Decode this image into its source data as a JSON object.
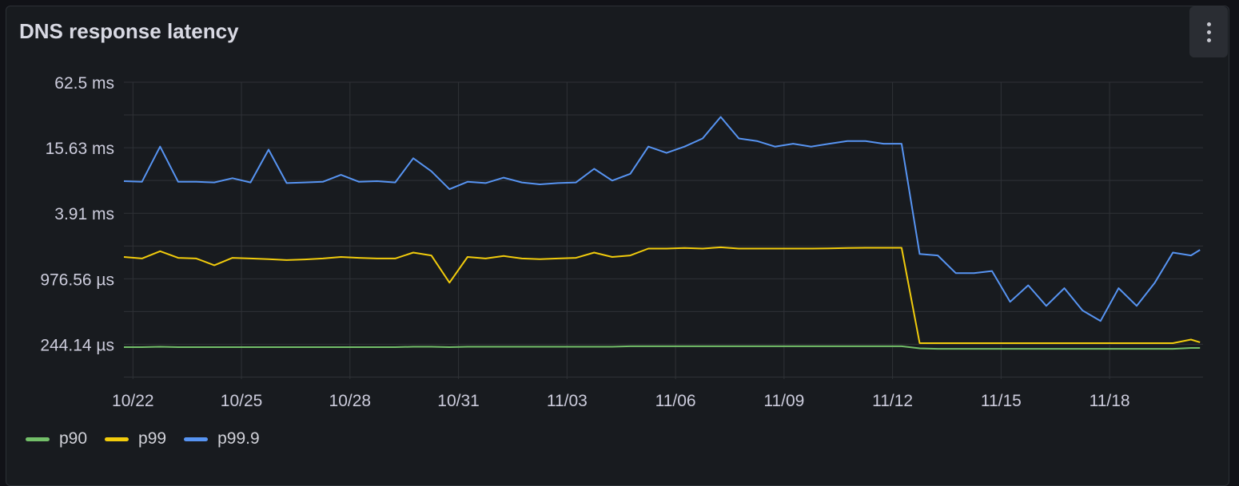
{
  "panel": {
    "title": "DNS response latency",
    "menu_icon": "kebab-vertical-icon"
  },
  "colors": {
    "background": "#181b1f",
    "grid": "#2f3237",
    "text": "#ccccdc",
    "p90": "#73BF69",
    "p99": "#F2CC0C",
    "p99.9": "#5794F2"
  },
  "chart_data": {
    "type": "line",
    "title": "DNS response latency",
    "yscale": "log2",
    "yunit": "ms",
    "ylim": [
      0.117,
      62.5
    ],
    "xlim": [
      "10/21 18:00",
      "11/20 14:00"
    ],
    "grid": true,
    "legend": "bottom-left",
    "yticks": [
      {
        "value": 62.5,
        "label": "62.5 ms"
      },
      {
        "value": 15.625,
        "label": "15.63 ms"
      },
      {
        "value": 3.90625,
        "label": "3.91 ms"
      },
      {
        "value": 0.9765625,
        "label": "976.56 µs"
      },
      {
        "value": 0.244140625,
        "label": "244.14 µs"
      }
    ],
    "xticks": [
      "10/22",
      "10/25",
      "10/28",
      "10/31",
      "11/03",
      "11/06",
      "11/09",
      "11/12",
      "11/15",
      "11/18"
    ],
    "x": [
      "10/21 18:00",
      "10/22 06:00",
      "10/22 18:00",
      "10/23 06:00",
      "10/23 18:00",
      "10/24 06:00",
      "10/24 18:00",
      "10/25 06:00",
      "10/25 18:00",
      "10/26 06:00",
      "10/26 18:00",
      "10/27 06:00",
      "10/27 18:00",
      "10/28 06:00",
      "10/28 18:00",
      "10/29 06:00",
      "10/29 18:00",
      "10/30 06:00",
      "10/30 18:00",
      "10/31 06:00",
      "10/31 18:00",
      "11/01 06:00",
      "11/01 18:00",
      "11/02 06:00",
      "11/02 18:00",
      "11/03 06:00",
      "11/03 18:00",
      "11/04 06:00",
      "11/04 18:00",
      "11/05 06:00",
      "11/05 18:00",
      "11/06 06:00",
      "11/06 18:00",
      "11/07 06:00",
      "11/07 18:00",
      "11/08 06:00",
      "11/08 18:00",
      "11/09 06:00",
      "11/09 18:00",
      "11/10 06:00",
      "11/10 18:00",
      "11/11 06:00",
      "11/11 18:00",
      "11/12 06:00",
      "11/12 18:00",
      "11/13 06:00",
      "11/13 18:00",
      "11/14 06:00",
      "11/14 18:00",
      "11/15 06:00",
      "11/15 18:00",
      "11/16 06:00",
      "11/16 18:00",
      "11/17 06:00",
      "11/17 18:00",
      "11/18 06:00",
      "11/18 18:00",
      "11/19 06:00",
      "11/19 18:00",
      "11/20 06:00",
      "11/20 12:00"
    ],
    "series": [
      {
        "name": "p90",
        "values": [
          0.23,
          0.23,
          0.232,
          0.23,
          0.23,
          0.23,
          0.23,
          0.23,
          0.23,
          0.23,
          0.23,
          0.23,
          0.23,
          0.23,
          0.23,
          0.23,
          0.232,
          0.232,
          0.23,
          0.232,
          0.232,
          0.232,
          0.232,
          0.232,
          0.232,
          0.232,
          0.232,
          0.232,
          0.234,
          0.234,
          0.234,
          0.234,
          0.234,
          0.234,
          0.234,
          0.234,
          0.234,
          0.234,
          0.234,
          0.234,
          0.234,
          0.234,
          0.234,
          0.234,
          0.224,
          0.222,
          0.222,
          0.222,
          0.222,
          0.222,
          0.222,
          0.222,
          0.222,
          0.222,
          0.222,
          0.222,
          0.222,
          0.222,
          0.222,
          0.226,
          0.226
        ]
      },
      {
        "name": "p99",
        "values": [
          1.55,
          1.5,
          1.75,
          1.52,
          1.5,
          1.3,
          1.52,
          1.5,
          1.48,
          1.45,
          1.47,
          1.5,
          1.55,
          1.52,
          1.5,
          1.5,
          1.7,
          1.6,
          0.9,
          1.55,
          1.5,
          1.58,
          1.5,
          1.48,
          1.5,
          1.52,
          1.7,
          1.55,
          1.6,
          1.85,
          1.85,
          1.87,
          1.85,
          1.9,
          1.85,
          1.85,
          1.85,
          1.85,
          1.85,
          1.86,
          1.87,
          1.88,
          1.88,
          1.88,
          0.25,
          0.25,
          0.25,
          0.25,
          0.25,
          0.25,
          0.25,
          0.25,
          0.25,
          0.25,
          0.25,
          0.25,
          0.25,
          0.25,
          0.25,
          0.27,
          0.255
        ]
      },
      {
        "name": "p99.9",
        "values": [
          7.7,
          7.6,
          16,
          7.6,
          7.6,
          7.5,
          8.2,
          7.5,
          15,
          7.4,
          7.5,
          7.6,
          8.8,
          7.6,
          7.7,
          7.5,
          12.5,
          9.5,
          6.5,
          7.6,
          7.4,
          8.3,
          7.5,
          7.2,
          7.4,
          7.5,
          10,
          7.8,
          9,
          16,
          14,
          16,
          19,
          30,
          19,
          18,
          16,
          17,
          16,
          17,
          18,
          18,
          17,
          17,
          1.65,
          1.6,
          1.1,
          1.1,
          1.15,
          0.6,
          0.85,
          0.55,
          0.8,
          0.5,
          0.4,
          0.8,
          0.55,
          0.9,
          1.7,
          1.6,
          1.8
        ]
      }
    ]
  },
  "legend": [
    {
      "label": "p90"
    },
    {
      "label": "p99"
    },
    {
      "label": "p99.9"
    }
  ]
}
